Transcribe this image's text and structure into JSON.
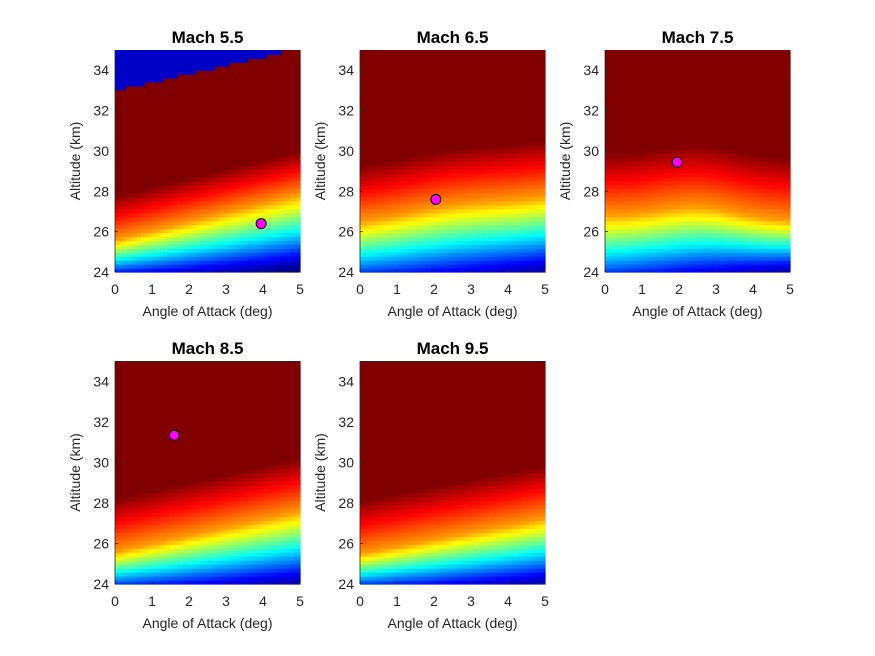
{
  "chart_data": [
    {
      "type": "heatmap",
      "title": "Mach 5.5",
      "xlabel": "Angle of Attack (deg)",
      "ylabel": "Altitude (km)",
      "xlim": [
        0,
        5
      ],
      "ylim": [
        24,
        35
      ],
      "xticks": [
        "0",
        "1",
        "2",
        "3",
        "4",
        "5"
      ],
      "yticks": [
        "24",
        "26",
        "28",
        "30",
        "32",
        "34"
      ],
      "colormap": "jet",
      "field": {
        "base": 25.6,
        "slope": 0.45,
        "bump": 0.0,
        "scale": 7.4,
        "floor_value": 0.0,
        "dark_corner": true
      },
      "marker": {
        "x": 3.95,
        "y": 26.4,
        "color": "#ff00ff"
      }
    },
    {
      "type": "heatmap",
      "title": "Mach 6.5",
      "xlabel": "Angle of Attack (deg)",
      "ylabel": "Altitude (km)",
      "xlim": [
        0,
        5
      ],
      "ylim": [
        24,
        35
      ],
      "xticks": [
        "0",
        "1",
        "2",
        "3",
        "4",
        "5"
      ],
      "yticks": [
        "24",
        "26",
        "28",
        "30",
        "32",
        "34"
      ],
      "colormap": "jet",
      "field": {
        "base": 26.5,
        "slope": 0.25,
        "bump": 0.2,
        "scale": 9.5,
        "floor_value": 0.05,
        "dark_corner": false
      },
      "marker": {
        "x": 2.05,
        "y": 27.6,
        "color": "#ff00ff"
      }
    },
    {
      "type": "heatmap",
      "title": "Mach 7.5",
      "xlabel": "Angle of Attack (deg)",
      "ylabel": "Altitude (km)",
      "xlim": [
        0,
        5
      ],
      "ylim": [
        24,
        35
      ],
      "xticks": [
        "0",
        "1",
        "2",
        "3",
        "4",
        "5"
      ],
      "yticks": [
        "24",
        "26",
        "28",
        "30",
        "32",
        "34"
      ],
      "colormap": "jet",
      "field": {
        "base": 26.8,
        "slope": -0.05,
        "bump": 0.55,
        "scale": 10.5,
        "floor_value": 0.05,
        "dark_corner": false
      },
      "marker": {
        "x": 1.95,
        "y": 29.45,
        "color": "#ff00ff"
      }
    },
    {
      "type": "heatmap",
      "title": "Mach 8.5",
      "xlabel": "Angle of Attack (deg)",
      "ylabel": "Altitude (km)",
      "xlim": [
        0,
        5
      ],
      "ylim": [
        24,
        35
      ],
      "xticks": [
        "0",
        "1",
        "2",
        "3",
        "4",
        "5"
      ],
      "yticks": [
        "24",
        "26",
        "28",
        "30",
        "32",
        "34"
      ],
      "colormap": "jet",
      "field": {
        "base": 25.6,
        "slope": 0.4,
        "bump": 0.0,
        "scale": 9.0,
        "floor_value": 0.05,
        "dark_corner": false
      },
      "marker": {
        "x": 1.6,
        "y": 31.35,
        "color": "#ff00ff"
      }
    },
    {
      "type": "heatmap",
      "title": "Mach 9.5",
      "xlabel": "Angle of Attack (deg)",
      "ylabel": "Altitude (km)",
      "xlim": [
        0,
        5
      ],
      "ylim": [
        24,
        35
      ],
      "xticks": [
        "0",
        "1",
        "2",
        "3",
        "4",
        "5"
      ],
      "yticks": [
        "24",
        "26",
        "28",
        "30",
        "32",
        "34"
      ],
      "colormap": "jet",
      "field": {
        "base": 25.5,
        "slope": 0.35,
        "bump": 0.0,
        "scale": 9.0,
        "floor_value": 0.05,
        "dark_corner": false
      },
      "marker": null
    }
  ]
}
